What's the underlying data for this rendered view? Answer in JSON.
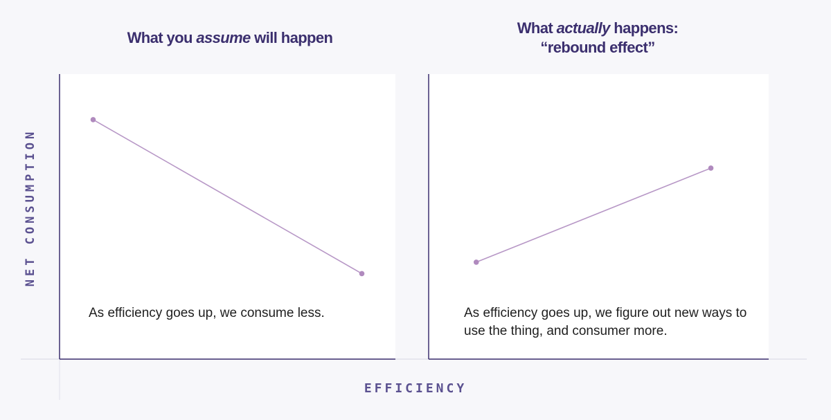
{
  "panels": [
    {
      "title_before": "What you ",
      "title_em": "assume",
      "title_after": " will happen",
      "annotation": "As efficiency goes up, we consume less."
    },
    {
      "title_line1_before": "What ",
      "title_line1_em": "actually",
      "title_line1_after": " happens:",
      "title_line2": "“rebound effect”",
      "annotation": "As efficiency goes up, we figure out new ways to use the thing, and consumer more."
    }
  ],
  "axes": {
    "ylabel": "NET CONSUMPTION",
    "xlabel": "EFFICIENCY"
  },
  "colors": {
    "title": "#3b2f6e",
    "axis": "#3b2f6e",
    "axis_label": "#5b5190",
    "series_line": "#b797c6",
    "series_point": "#b08abe",
    "panel_bg": "#ffffff",
    "page_bg": "#f7f7fa"
  },
  "chart_data": [
    {
      "type": "line",
      "series": [
        {
          "x": [
            0.1,
            0.9
          ],
          "y": [
            0.84,
            0.3
          ]
        }
      ],
      "xlim": [
        0,
        1
      ],
      "ylim": [
        0,
        1
      ],
      "grid": false
    },
    {
      "type": "line",
      "series": [
        {
          "x": [
            0.14,
            0.83
          ],
          "y": [
            0.34,
            0.67
          ]
        }
      ],
      "xlim": [
        0,
        1
      ],
      "ylim": [
        0,
        1
      ],
      "grid": false
    }
  ]
}
